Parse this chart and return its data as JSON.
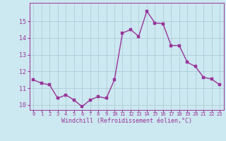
{
  "x": [
    0,
    1,
    2,
    3,
    4,
    5,
    6,
    7,
    8,
    9,
    10,
    11,
    12,
    13,
    14,
    15,
    16,
    17,
    18,
    19,
    20,
    21,
    22,
    23
  ],
  "y": [
    11.5,
    11.3,
    11.2,
    10.4,
    10.6,
    10.3,
    9.9,
    10.3,
    10.5,
    10.4,
    11.5,
    14.3,
    14.5,
    14.1,
    15.6,
    14.9,
    14.85,
    13.55,
    13.55,
    12.55,
    12.3,
    11.65,
    11.55,
    11.2
  ],
  "line_color": "#993399",
  "marker_color": "#993399",
  "background_color": "#cce8f0",
  "grid_color": "#b0ccd8",
  "xlabel": "Windchill (Refroidissement éolien,°C)",
  "xlabel_color": "#993399",
  "tick_color": "#993399",
  "ylim": [
    9.7,
    16.1
  ],
  "yticks": [
    10,
    11,
    12,
    13,
    14,
    15
  ],
  "xticks": [
    0,
    1,
    2,
    3,
    4,
    5,
    6,
    7,
    8,
    9,
    10,
    11,
    12,
    13,
    14,
    15,
    16,
    17,
    18,
    19,
    20,
    21,
    22,
    23
  ],
  "marker_size": 2.5,
  "line_width": 1.0
}
